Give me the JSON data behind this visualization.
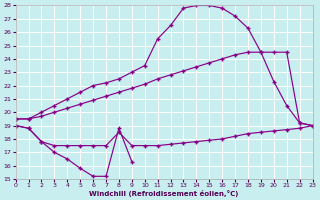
{
  "xlabel": "Windchill (Refroidissement éolien,°C)",
  "bg_color": "#c8eef0",
  "line_color": "#880088",
  "grid_color": "#ffffff",
  "xlim": [
    0,
    23
  ],
  "ylim": [
    15,
    28
  ],
  "yticks": [
    15,
    16,
    17,
    18,
    19,
    20,
    21,
    22,
    23,
    24,
    25,
    26,
    27,
    28
  ],
  "xticks": [
    0,
    1,
    2,
    3,
    4,
    5,
    6,
    7,
    8,
    9,
    10,
    11,
    12,
    13,
    14,
    15,
    16,
    17,
    18,
    19,
    20,
    21,
    22,
    23
  ],
  "curve_upper_x": [
    0,
    1,
    2,
    3,
    4,
    5,
    6,
    7,
    8,
    9,
    10,
    11,
    12,
    13,
    14,
    15,
    16,
    17,
    18,
    19,
    20,
    21,
    22,
    23
  ],
  "curve_upper_y": [
    19.5,
    19.5,
    20.0,
    20.5,
    21.0,
    21.5,
    22.0,
    22.2,
    22.5,
    23.0,
    23.5,
    25.5,
    26.5,
    27.8,
    28.0,
    28.0,
    27.8,
    27.2,
    26.3,
    24.5,
    22.3,
    20.5,
    19.2,
    19.0
  ],
  "curve_diag_x": [
    0,
    1,
    2,
    3,
    4,
    5,
    6,
    7,
    8,
    9,
    10,
    11,
    12,
    13,
    14,
    15,
    16,
    17,
    18,
    19,
    20,
    21,
    22,
    23
  ],
  "curve_diag_y": [
    19.5,
    19.5,
    19.7,
    20.0,
    20.3,
    20.6,
    20.9,
    21.2,
    21.5,
    21.8,
    22.1,
    22.5,
    22.8,
    23.1,
    23.4,
    23.7,
    24.0,
    24.3,
    24.5,
    24.5,
    24.5,
    24.5,
    19.2,
    19.0
  ],
  "curve_lower_x": [
    0,
    1,
    2,
    3,
    4,
    5,
    6,
    7,
    8,
    9,
    10,
    11,
    12,
    13,
    14,
    15,
    16,
    17,
    18,
    19,
    20,
    21,
    22,
    23
  ],
  "curve_lower_y": [
    19.0,
    18.8,
    17.8,
    17.5,
    17.5,
    17.5,
    17.5,
    17.5,
    18.5,
    17.5,
    17.5,
    17.5,
    17.6,
    17.7,
    17.8,
    17.9,
    18.0,
    18.2,
    18.4,
    18.5,
    18.6,
    18.7,
    18.8,
    19.0
  ],
  "curve_bottom_x": [
    0,
    1,
    2,
    3,
    4,
    5,
    6,
    7,
    8,
    9
  ],
  "curve_bottom_y": [
    19.0,
    18.8,
    17.8,
    17.0,
    16.5,
    15.8,
    15.2,
    15.2,
    18.8,
    16.3
  ]
}
